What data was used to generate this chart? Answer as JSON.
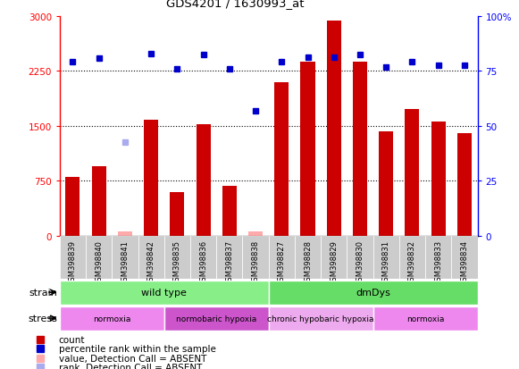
{
  "title": "GDS4201 / 1630993_at",
  "samples": [
    "GSM398839",
    "GSM398840",
    "GSM398841",
    "GSM398842",
    "GSM398835",
    "GSM398836",
    "GSM398837",
    "GSM398838",
    "GSM398827",
    "GSM398828",
    "GSM398829",
    "GSM398830",
    "GSM398831",
    "GSM398832",
    "GSM398833",
    "GSM398834"
  ],
  "counts": [
    800,
    950,
    60,
    1580,
    600,
    1520,
    680,
    60,
    2100,
    2380,
    2940,
    2380,
    1430,
    1730,
    1560,
    1400
  ],
  "ranks": [
    2380,
    2420,
    null,
    2480,
    2280,
    2470,
    2280,
    1700,
    2380,
    2430,
    2440,
    2470,
    2300,
    2380,
    2320,
    2330
  ],
  "absent_ranks": [
    null,
    null,
    1280,
    null,
    null,
    null,
    null,
    null,
    null,
    null,
    null,
    null,
    null,
    null,
    null,
    null
  ],
  "count_absent": [
    false,
    false,
    true,
    false,
    false,
    false,
    false,
    true,
    false,
    false,
    false,
    false,
    false,
    false,
    false,
    false
  ],
  "ylim_left": [
    0,
    3000
  ],
  "ylim_right": [
    0,
    100
  ],
  "yticks_left": [
    0,
    750,
    1500,
    2250,
    3000
  ],
  "yticks_right": [
    0,
    25,
    50,
    75,
    100
  ],
  "bar_color": "#cc0000",
  "bar_absent_color": "#ffaaaa",
  "rank_color": "#0000cc",
  "rank_absent_color": "#aaaaee",
  "strain_groups": [
    {
      "label": "wild type",
      "start": 0,
      "end": 8,
      "color": "#88ee88"
    },
    {
      "label": "dmDys",
      "start": 8,
      "end": 16,
      "color": "#66dd66"
    }
  ],
  "stress_groups": [
    {
      "label": "normoxia",
      "start": 0,
      "end": 4,
      "color": "#ee88ee"
    },
    {
      "label": "normobaric hypoxia",
      "start": 4,
      "end": 8,
      "color": "#cc55cc"
    },
    {
      "label": "chronic hypobaric hypoxia",
      "start": 8,
      "end": 12,
      "color": "#eeaaee"
    },
    {
      "label": "normoxia",
      "start": 12,
      "end": 16,
      "color": "#ee88ee"
    }
  ],
  "legend_items": [
    {
      "label": "count",
      "color": "#cc0000"
    },
    {
      "label": "percentile rank within the sample",
      "color": "#0000cc"
    },
    {
      "label": "value, Detection Call = ABSENT",
      "color": "#ffaaaa"
    },
    {
      "label": "rank, Detection Call = ABSENT",
      "color": "#aaaaee"
    }
  ]
}
